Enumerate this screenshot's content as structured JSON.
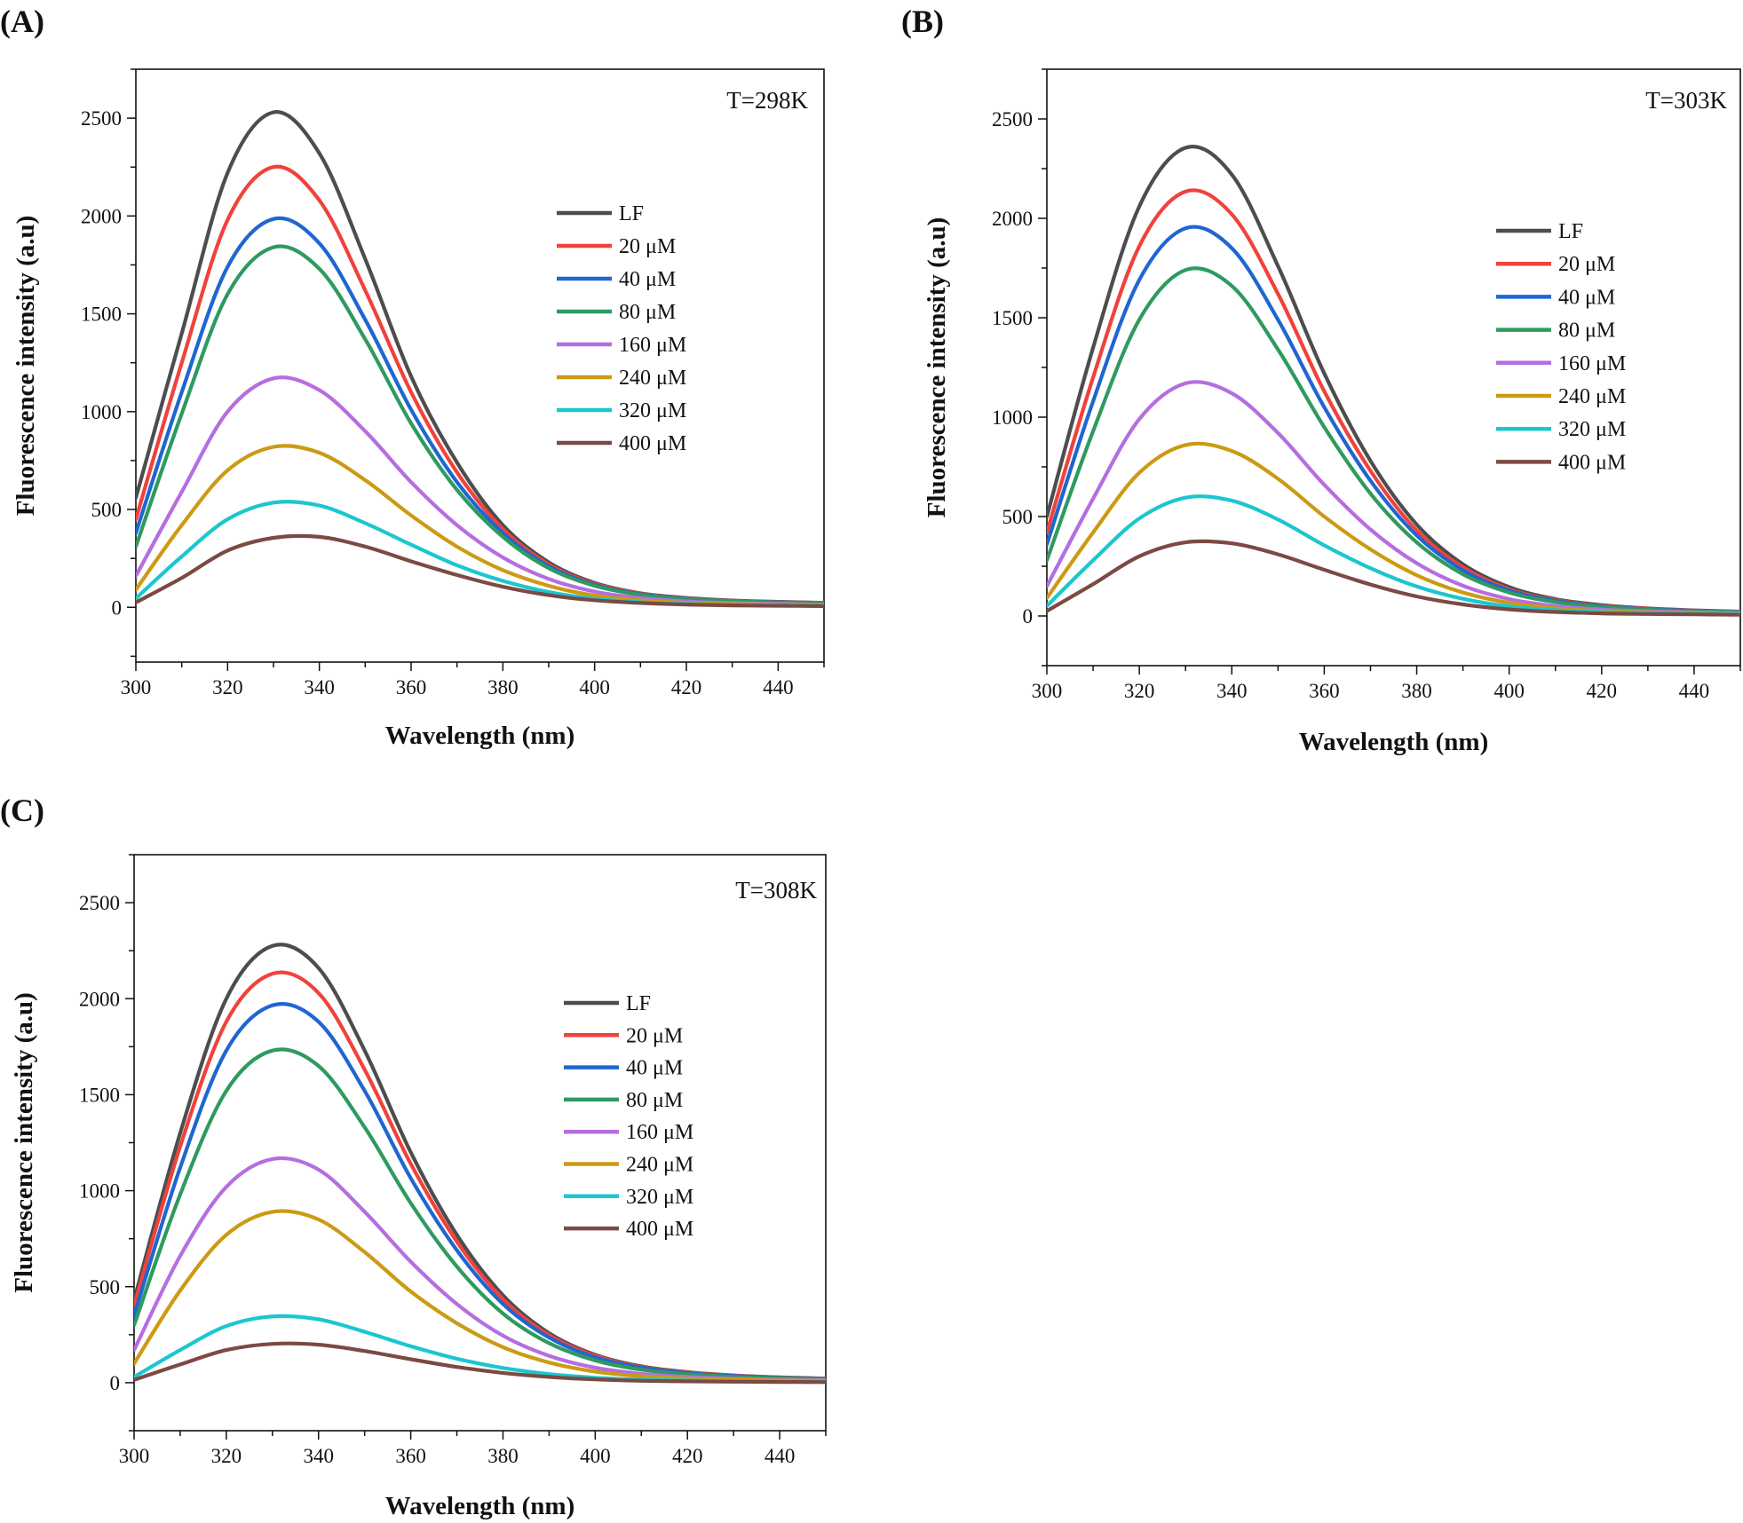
{
  "chart_data": [
    {
      "type": "line",
      "panel_label": "(A)",
      "annotation": "T=298K",
      "xlabel": "Wavelength (nm)",
      "ylabel": "Fluorescence intensity (a.u)",
      "xlim": [
        300,
        450
      ],
      "ylim": [
        -280,
        2750
      ],
      "xticks": [
        "300",
        "320",
        "340",
        "360",
        "380",
        "400",
        "420",
        "440"
      ],
      "yticks": [
        "0",
        "500",
        "1000",
        "1500",
        "2000",
        "2500"
      ],
      "x": [
        300,
        310,
        320,
        330,
        340,
        350,
        360,
        370,
        380,
        390,
        400,
        410,
        420,
        430,
        440,
        450
      ],
      "series": [
        {
          "name": "LF",
          "color": "#4d4d4d",
          "values": [
            560,
            1400,
            2220,
            2530,
            2320,
            1780,
            1180,
            740,
            420,
            230,
            125,
            72,
            48,
            35,
            28,
            23
          ]
        },
        {
          "name": "20 μM",
          "color": "#f0423c",
          "values": [
            450,
            1250,
            1980,
            2250,
            2080,
            1620,
            1100,
            690,
            400,
            220,
            120,
            70,
            46,
            33,
            27,
            22
          ]
        },
        {
          "name": "40 μM",
          "color": "#1f66d1",
          "values": [
            380,
            1100,
            1740,
            1985,
            1860,
            1470,
            1010,
            640,
            380,
            210,
            115,
            67,
            44,
            32,
            26,
            21
          ]
        },
        {
          "name": "80 μM",
          "color": "#2e9a5f",
          "values": [
            310,
            990,
            1600,
            1840,
            1730,
            1370,
            940,
            600,
            360,
            200,
            110,
            64,
            42,
            31,
            25,
            20
          ]
        },
        {
          "name": "160 μM",
          "color": "#b56ee0",
          "values": [
            160,
            590,
            1000,
            1170,
            1110,
            900,
            640,
            420,
            255,
            145,
            80,
            47,
            30,
            22,
            17,
            14
          ]
        },
        {
          "name": "240 μM",
          "color": "#cc9a14",
          "values": [
            90,
            420,
            700,
            820,
            790,
            650,
            470,
            310,
            190,
            110,
            60,
            36,
            23,
            17,
            13,
            11
          ]
        },
        {
          "name": "320 μM",
          "color": "#1cc6cf",
          "values": [
            45,
            260,
            450,
            535,
            520,
            430,
            320,
            215,
            135,
            78,
            44,
            26,
            17,
            12,
            10,
            8
          ]
        },
        {
          "name": "400 μM",
          "color": "#7b4a42",
          "values": [
            25,
            150,
            290,
            355,
            360,
            310,
            235,
            165,
            105,
            62,
            36,
            22,
            14,
            10,
            8,
            6
          ]
        }
      ]
    },
    {
      "type": "line",
      "panel_label": "(B)",
      "annotation": "T=303K",
      "xlabel": "Wavelength (nm)",
      "ylabel": "Fluorescence intensity (a.u)",
      "xlim": [
        300,
        450
      ],
      "ylim": [
        -250,
        2750
      ],
      "xticks": [
        "300",
        "320",
        "340",
        "360",
        "380",
        "400",
        "420",
        "440"
      ],
      "yticks": [
        "0",
        "500",
        "1000",
        "1500",
        "2000",
        "2500"
      ],
      "x": [
        300,
        310,
        320,
        330,
        340,
        350,
        360,
        370,
        380,
        390,
        400,
        410,
        420,
        430,
        440,
        450
      ],
      "series": [
        {
          "name": "LF",
          "color": "#4d4d4d",
          "values": [
            500,
            1350,
            2060,
            2355,
            2220,
            1760,
            1220,
            780,
            460,
            260,
            145,
            85,
            55,
            38,
            28,
            22
          ]
        },
        {
          "name": "20 μM",
          "color": "#f0423c",
          "values": [
            420,
            1200,
            1860,
            2135,
            2020,
            1620,
            1130,
            730,
            430,
            245,
            135,
            80,
            52,
            36,
            27,
            21
          ]
        },
        {
          "name": "40 μM",
          "color": "#1f66d1",
          "values": [
            360,
            1080,
            1690,
            1950,
            1850,
            1490,
            1050,
            680,
            405,
            230,
            128,
            76,
            49,
            34,
            26,
            20
          ]
        },
        {
          "name": "80 μM",
          "color": "#2e9a5f",
          "values": [
            280,
            930,
            1490,
            1740,
            1660,
            1340,
            950,
            615,
            370,
            210,
            118,
            70,
            46,
            32,
            24,
            19
          ]
        },
        {
          "name": "160 μM",
          "color": "#b56ee0",
          "values": [
            150,
            590,
            990,
            1170,
            1120,
            920,
            660,
            435,
            265,
            152,
            85,
            50,
            32,
            23,
            18,
            14
          ]
        },
        {
          "name": "240 μM",
          "color": "#cc9a14",
          "values": [
            90,
            420,
            720,
            860,
            830,
            690,
            500,
            335,
            205,
            118,
            66,
            39,
            25,
            18,
            14,
            11
          ]
        },
        {
          "name": "320 μM",
          "color": "#1cc6cf",
          "values": [
            50,
            280,
            490,
            595,
            580,
            485,
            355,
            240,
            148,
            86,
            48,
            29,
            19,
            14,
            11,
            9
          ]
        },
        {
          "name": "400 μM",
          "color": "#7b4a42",
          "values": [
            25,
            160,
            300,
            370,
            365,
            310,
            232,
            158,
            98,
            58,
            33,
            20,
            13,
            10,
            8,
            6
          ]
        }
      ]
    },
    {
      "type": "line",
      "panel_label": "(C)",
      "annotation": "T=308K",
      "xlabel": "Wavelength (nm)",
      "ylabel": "Fluorescence intensity (a.u)",
      "xlim": [
        300,
        450
      ],
      "ylim": [
        -250,
        2750
      ],
      "xticks": [
        "300",
        "320",
        "340",
        "360",
        "380",
        "400",
        "420",
        "440"
      ],
      "yticks": [
        "0",
        "500",
        "1000",
        "1500",
        "2000",
        "2500"
      ],
      "x": [
        300,
        310,
        320,
        330,
        340,
        350,
        360,
        370,
        380,
        390,
        400,
        410,
        420,
        430,
        440,
        450
      ],
      "series": [
        {
          "name": "LF",
          "color": "#4d4d4d",
          "values": [
            430,
            1300,
            2000,
            2275,
            2160,
            1730,
            1200,
            770,
            455,
            258,
            145,
            85,
            55,
            38,
            28,
            22
          ]
        },
        {
          "name": "20 μM",
          "color": "#f0423c",
          "values": [
            400,
            1230,
            1880,
            2130,
            2030,
            1630,
            1140,
            735,
            435,
            248,
            140,
            82,
            53,
            37,
            27,
            21
          ]
        },
        {
          "name": "40 μM",
          "color": "#1f66d1",
          "values": [
            350,
            1120,
            1730,
            1965,
            1880,
            1520,
            1065,
            690,
            410,
            235,
            132,
            78,
            50,
            35,
            26,
            20
          ]
        },
        {
          "name": "80 μM",
          "color": "#2e9a5f",
          "values": [
            300,
            980,
            1520,
            1730,
            1650,
            1330,
            935,
            605,
            360,
            206,
            116,
            68,
            44,
            31,
            23,
            18
          ]
        },
        {
          "name": "160 μM",
          "color": "#b56ee0",
          "values": [
            170,
            660,
            1020,
            1165,
            1110,
            890,
            630,
            410,
            245,
            140,
            78,
            46,
            30,
            21,
            16,
            13
          ]
        },
        {
          "name": "240 μM",
          "color": "#cc9a14",
          "values": [
            100,
            480,
            770,
            890,
            850,
            680,
            475,
            310,
            185,
            105,
            58,
            34,
            22,
            16,
            12,
            10
          ]
        },
        {
          "name": "320 μM",
          "color": "#1cc6cf",
          "values": [
            30,
            170,
            295,
            345,
            330,
            265,
            190,
            125,
            77,
            45,
            26,
            16,
            11,
            8,
            6,
            5
          ]
        },
        {
          "name": "400 μM",
          "color": "#7b4a42",
          "values": [
            15,
            95,
            170,
            202,
            198,
            165,
            122,
            82,
            51,
            30,
            17,
            10,
            7,
            5,
            4,
            3
          ]
        }
      ]
    }
  ]
}
